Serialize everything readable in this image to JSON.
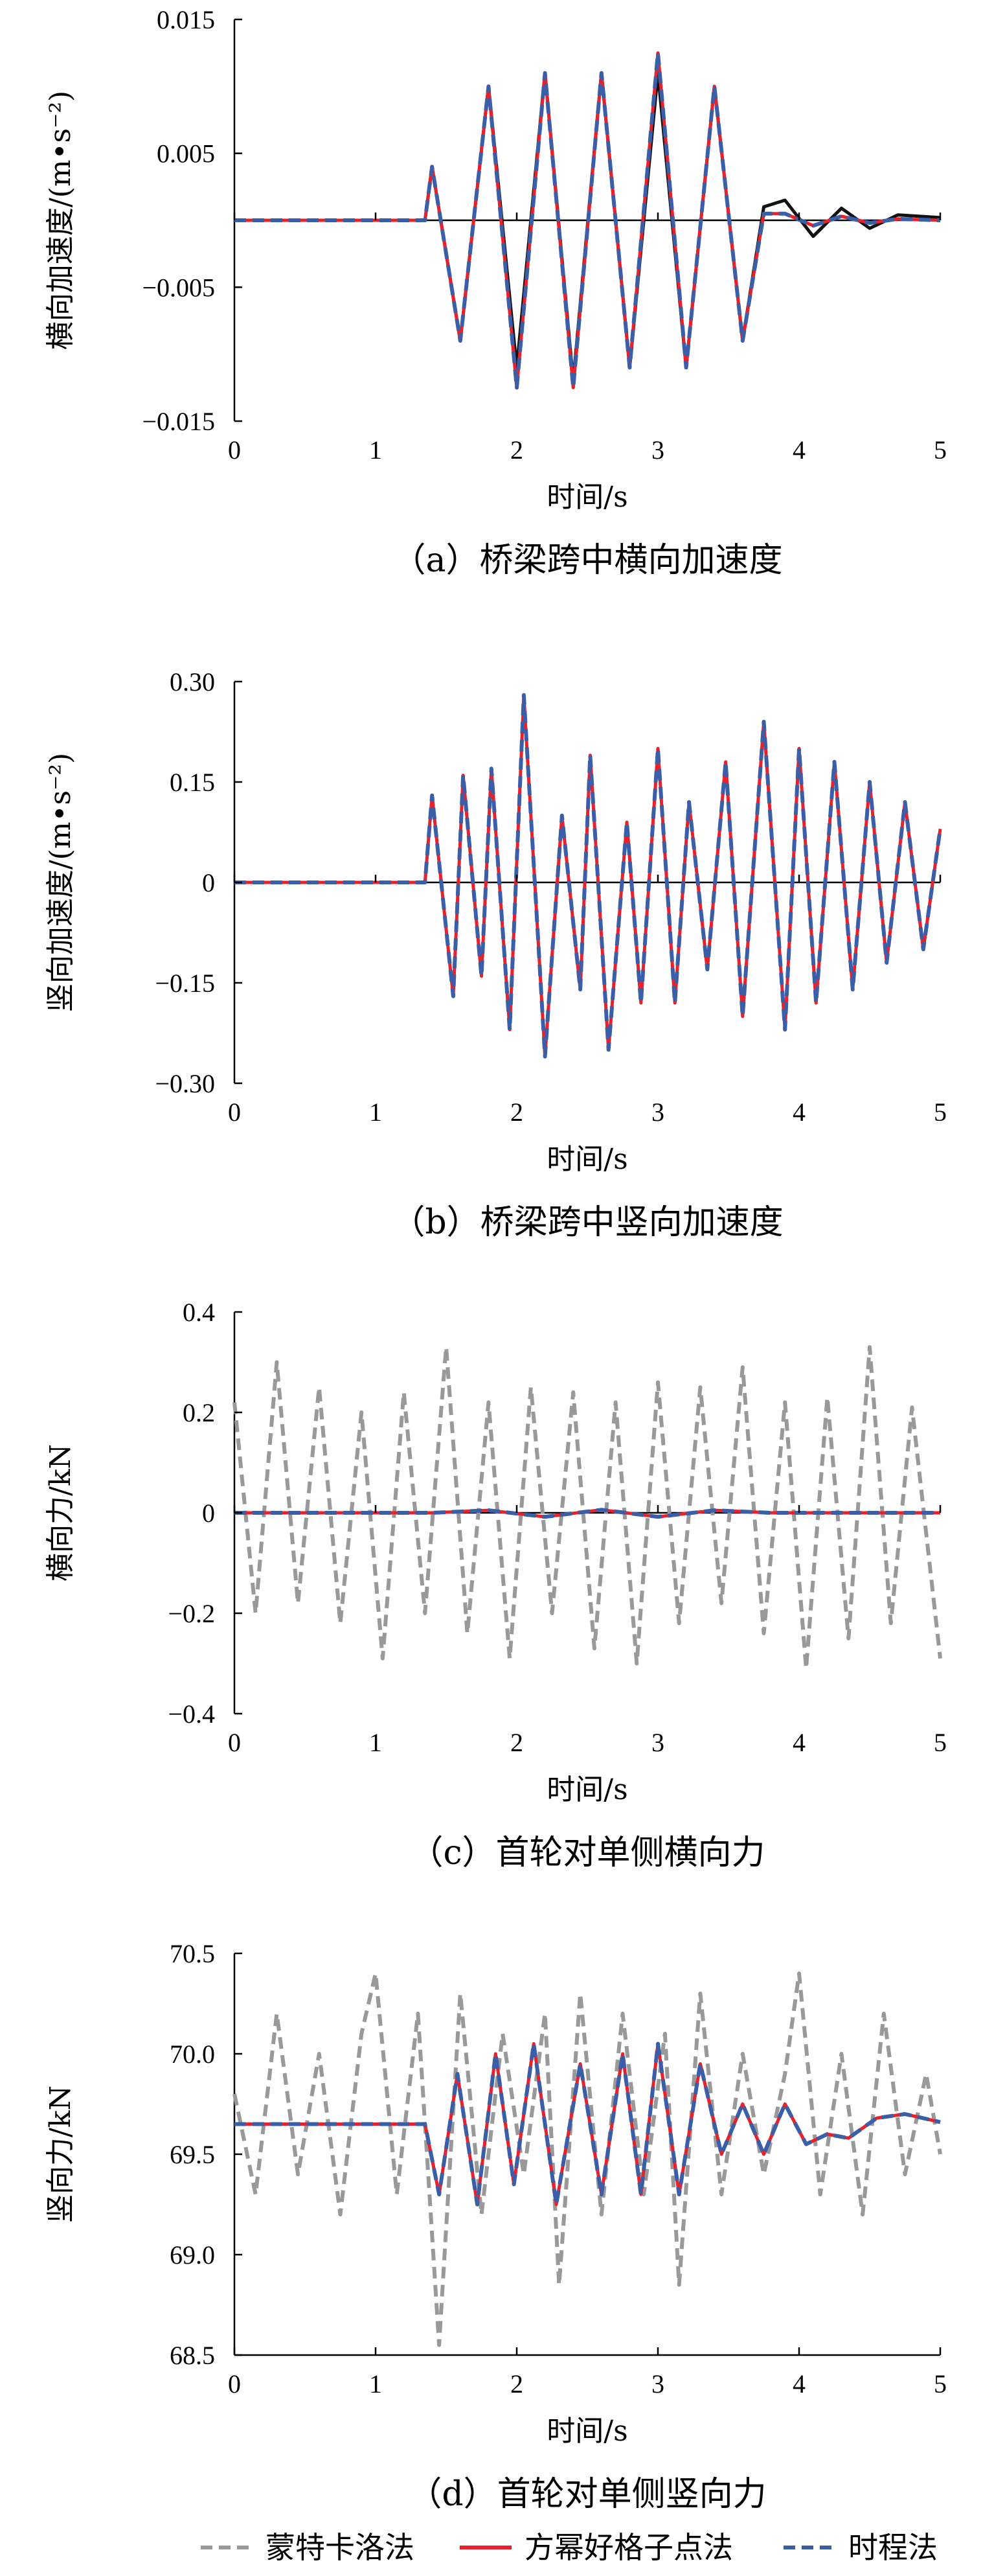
{
  "legend": [
    {
      "label": "蒙特卡洛法",
      "color": "#999999",
      "dash": "dash"
    },
    {
      "label": "方幂好格子点法",
      "color": "#e8212a",
      "dash": "solid"
    },
    {
      "label": "时程法",
      "color": "#3a5ea8",
      "dash": "dash"
    }
  ],
  "chart_data": [
    {
      "type": "line",
      "caption": "（a）桥梁跨中横向加速度",
      "xlabel": "时间/s",
      "ylabel": "横向加速度/(m•s⁻²)",
      "xlim": [
        0,
        5
      ],
      "ylim": [
        -0.015,
        0.015
      ],
      "xticks": [
        "0",
        "1",
        "2",
        "3",
        "4",
        "5"
      ],
      "yticks": [
        "−0.015",
        "−0.005",
        "0.005",
        "0.015"
      ],
      "ytick_values": [
        -0.015,
        -0.005,
        0.005,
        0.015
      ],
      "grid": false,
      "series": [
        {
          "name": "蒙特卡洛法",
          "color": "#111111",
          "dash": "solid",
          "x": [
            0,
            1.35,
            1.4,
            1.6,
            1.8,
            2.0,
            2.2,
            2.4,
            2.6,
            2.8,
            3.0,
            3.2,
            3.4,
            3.6,
            3.75,
            3.9,
            4.1,
            4.3,
            4.5,
            4.7,
            5.0
          ],
          "y": [
            0,
            0,
            0.004,
            -0.009,
            0.01,
            -0.011,
            0.011,
            -0.012,
            0.011,
            -0.011,
            0.011,
            -0.011,
            0.01,
            -0.009,
            0.001,
            0.0015,
            -0.0012,
            0.0009,
            -0.0006,
            0.0004,
            0.0002
          ]
        },
        {
          "name": "方幂好格子点法",
          "color": "#e8212a",
          "dash": "solid",
          "x": [
            0,
            1.35,
            1.4,
            1.6,
            1.8,
            2.0,
            2.2,
            2.4,
            2.6,
            2.8,
            3.0,
            3.2,
            3.4,
            3.6,
            3.75,
            3.9,
            4.1,
            4.3,
            4.5,
            4.7,
            5.0
          ],
          "y": [
            0,
            0,
            0.004,
            -0.009,
            0.01,
            -0.0125,
            0.011,
            -0.0125,
            0.011,
            -0.011,
            0.0125,
            -0.011,
            0.01,
            -0.009,
            0.0005,
            0.0005,
            -0.0004,
            0.0003,
            -0.0002,
            0.0001,
            0
          ]
        },
        {
          "name": "时程法",
          "color": "#3a5ea8",
          "dash": "dash",
          "x": [
            0,
            1.35,
            1.4,
            1.6,
            1.8,
            2.0,
            2.2,
            2.4,
            2.6,
            2.8,
            3.0,
            3.2,
            3.4,
            3.6,
            3.75,
            3.9,
            4.1,
            4.3,
            4.5,
            4.7,
            5.0
          ],
          "y": [
            0,
            0,
            0.004,
            -0.009,
            0.01,
            -0.0125,
            0.011,
            -0.0125,
            0.011,
            -0.011,
            0.0125,
            -0.011,
            0.01,
            -0.009,
            0.0005,
            0.0005,
            -0.0004,
            0.0003,
            -0.0002,
            0.0001,
            0
          ]
        }
      ]
    },
    {
      "type": "line",
      "caption": "（b）桥梁跨中竖向加速度",
      "xlabel": "时间/s",
      "ylabel": "竖向加速度/(m•s⁻²)",
      "xlim": [
        0,
        5
      ],
      "ylim": [
        -0.3,
        0.3
      ],
      "xticks": [
        "0",
        "1",
        "2",
        "3",
        "4",
        "5"
      ],
      "yticks": [
        "−0.30",
        "−0.15",
        "0",
        "0.15",
        "0.30"
      ],
      "ytick_values": [
        -0.3,
        -0.15,
        0,
        0.15,
        0.3
      ],
      "grid": false,
      "series": [
        {
          "name": "方幂好格子点法",
          "color": "#e8212a",
          "dash": "solid",
          "x": [
            0,
            1.35,
            1.4,
            1.55,
            1.62,
            1.75,
            1.82,
            1.95,
            2.05,
            2.2,
            2.32,
            2.45,
            2.52,
            2.65,
            2.78,
            2.88,
            3.0,
            3.12,
            3.22,
            3.35,
            3.48,
            3.6,
            3.75,
            3.9,
            4.0,
            4.12,
            4.25,
            4.38,
            4.5,
            4.62,
            4.75,
            4.88,
            5.0
          ],
          "y": [
            0,
            0,
            0.13,
            -0.17,
            0.16,
            -0.14,
            0.17,
            -0.22,
            0.28,
            -0.26,
            0.1,
            -0.16,
            0.19,
            -0.25,
            0.09,
            -0.18,
            0.2,
            -0.18,
            0.12,
            -0.13,
            0.18,
            -0.2,
            0.24,
            -0.22,
            0.2,
            -0.18,
            0.18,
            -0.16,
            0.15,
            -0.12,
            0.12,
            -0.1,
            0.08
          ]
        },
        {
          "name": "时程法",
          "color": "#3a5ea8",
          "dash": "dash",
          "x": [
            0,
            1.35,
            1.4,
            1.55,
            1.62,
            1.75,
            1.82,
            1.95,
            2.05,
            2.2,
            2.32,
            2.45,
            2.52,
            2.65,
            2.78,
            2.88,
            3.0,
            3.12,
            3.22,
            3.35,
            3.48,
            3.6,
            3.75,
            3.9,
            4.0,
            4.12,
            4.25,
            4.38,
            4.5,
            4.62,
            4.75,
            4.88,
            5.0
          ],
          "y": [
            0,
            0,
            0.13,
            -0.17,
            0.16,
            -0.14,
            0.17,
            -0.22,
            0.28,
            -0.26,
            0.1,
            -0.16,
            0.19,
            -0.25,
            0.09,
            -0.18,
            0.2,
            -0.18,
            0.12,
            -0.13,
            0.18,
            -0.2,
            0.24,
            -0.22,
            0.2,
            -0.18,
            0.18,
            -0.16,
            0.15,
            -0.12,
            0.12,
            -0.1,
            0.08
          ]
        }
      ]
    },
    {
      "type": "line",
      "caption": "（c）首轮对单侧横向力",
      "xlabel": "时间/s",
      "ylabel": "横向力/kN",
      "xlim": [
        0,
        5
      ],
      "ylim": [
        -0.4,
        0.4
      ],
      "xticks": [
        "0",
        "1",
        "2",
        "3",
        "4",
        "5"
      ],
      "yticks": [
        "−0.4",
        "−0.2",
        "0",
        "0.2",
        "0.4"
      ],
      "ytick_values": [
        -0.4,
        -0.2,
        0,
        0.2,
        0.4
      ],
      "grid": false,
      "series": [
        {
          "name": "蒙特卡洛法",
          "color": "#999999",
          "dash": "dash",
          "x": [
            0,
            0.15,
            0.3,
            0.45,
            0.6,
            0.75,
            0.9,
            1.05,
            1.2,
            1.35,
            1.5,
            1.65,
            1.8,
            1.95,
            2.1,
            2.25,
            2.4,
            2.55,
            2.7,
            2.85,
            3.0,
            3.15,
            3.3,
            3.45,
            3.6,
            3.75,
            3.9,
            4.05,
            4.2,
            4.35,
            4.5,
            4.65,
            4.8,
            5.0
          ],
          "y": [
            0.22,
            -0.2,
            0.3,
            -0.18,
            0.25,
            -0.22,
            0.2,
            -0.29,
            0.24,
            -0.2,
            0.33,
            -0.24,
            0.22,
            -0.29,
            0.25,
            -0.2,
            0.24,
            -0.27,
            0.22,
            -0.3,
            0.26,
            -0.22,
            0.25,
            -0.18,
            0.29,
            -0.24,
            0.22,
            -0.31,
            0.23,
            -0.25,
            0.33,
            -0.22,
            0.21,
            -0.29
          ]
        },
        {
          "name": "方幂好格子点法",
          "color": "#e8212a",
          "dash": "solid",
          "x": [
            0,
            1.4,
            1.8,
            2.2,
            2.6,
            3.0,
            3.4,
            3.8,
            5.0
          ],
          "y": [
            0,
            0,
            0.005,
            -0.008,
            0.006,
            -0.008,
            0.005,
            0,
            0
          ]
        },
        {
          "name": "时程法",
          "color": "#3a5ea8",
          "dash": "dash",
          "x": [
            0,
            1.4,
            1.8,
            2.2,
            2.6,
            3.0,
            3.4,
            3.8,
            5.0
          ],
          "y": [
            0,
            0,
            0.005,
            -0.008,
            0.006,
            -0.008,
            0.005,
            0,
            0
          ]
        }
      ]
    },
    {
      "type": "line",
      "caption": "（d）首轮对单侧竖向力",
      "xlabel": "时间/s",
      "ylabel": "竖向力/kN",
      "xlim": [
        0,
        5
      ],
      "ylim": [
        68.5,
        70.5
      ],
      "xticks": [
        "0",
        "1",
        "2",
        "3",
        "4",
        "5"
      ],
      "yticks": [
        "68.5",
        "69.0",
        "69.5",
        "70.0",
        "70.5"
      ],
      "ytick_values": [
        68.5,
        69.0,
        69.5,
        70.0,
        70.5
      ],
      "grid": false,
      "series": [
        {
          "name": "蒙特卡洛法",
          "color": "#999999",
          "dash": "dash",
          "x": [
            0,
            0.15,
            0.3,
            0.45,
            0.6,
            0.75,
            0.9,
            1.0,
            1.15,
            1.3,
            1.45,
            1.6,
            1.75,
            1.9,
            2.05,
            2.2,
            2.3,
            2.45,
            2.6,
            2.75,
            2.9,
            3.05,
            3.15,
            3.3,
            3.45,
            3.6,
            3.75,
            3.9,
            4.0,
            4.15,
            4.3,
            4.45,
            4.6,
            4.75,
            4.9,
            5.0
          ],
          "y": [
            69.8,
            69.3,
            70.2,
            69.4,
            70.0,
            69.2,
            70.1,
            70.4,
            69.3,
            70.2,
            68.55,
            70.3,
            69.2,
            70.1,
            69.4,
            70.2,
            68.85,
            70.3,
            69.2,
            70.2,
            69.3,
            70.1,
            68.85,
            70.3,
            69.3,
            70.0,
            69.4,
            69.9,
            70.4,
            69.3,
            70.0,
            69.2,
            70.2,
            69.4,
            69.9,
            69.5
          ]
        },
        {
          "name": "方幂好格子点法",
          "color": "#e8212a",
          "dash": "solid",
          "x": [
            0,
            1.35,
            1.45,
            1.58,
            1.72,
            1.85,
            1.98,
            2.12,
            2.28,
            2.45,
            2.6,
            2.75,
            2.88,
            3.0,
            3.15,
            3.3,
            3.45,
            3.6,
            3.75,
            3.9,
            4.05,
            4.2,
            4.35,
            4.55,
            4.75,
            5.0
          ],
          "y": [
            69.65,
            69.65,
            69.3,
            69.9,
            69.25,
            70.0,
            69.35,
            70.05,
            69.25,
            69.95,
            69.3,
            70.0,
            69.3,
            70.05,
            69.3,
            69.95,
            69.5,
            69.75,
            69.5,
            69.75,
            69.55,
            69.6,
            69.58,
            69.68,
            69.7,
            69.66
          ]
        },
        {
          "name": "时程法",
          "color": "#3a5ea8",
          "dash": "dash",
          "x": [
            0,
            1.35,
            1.45,
            1.58,
            1.72,
            1.85,
            1.98,
            2.12,
            2.28,
            2.45,
            2.6,
            2.75,
            2.88,
            3.0,
            3.15,
            3.3,
            3.45,
            3.6,
            3.75,
            3.9,
            4.05,
            4.2,
            4.35,
            4.55,
            4.75,
            5.0
          ],
          "y": [
            69.65,
            69.65,
            69.3,
            69.9,
            69.25,
            70.0,
            69.35,
            70.05,
            69.25,
            69.95,
            69.3,
            70.0,
            69.3,
            70.05,
            69.3,
            69.95,
            69.5,
            69.75,
            69.5,
            69.75,
            69.55,
            69.6,
            69.58,
            69.68,
            69.7,
            69.66
          ]
        }
      ]
    }
  ]
}
